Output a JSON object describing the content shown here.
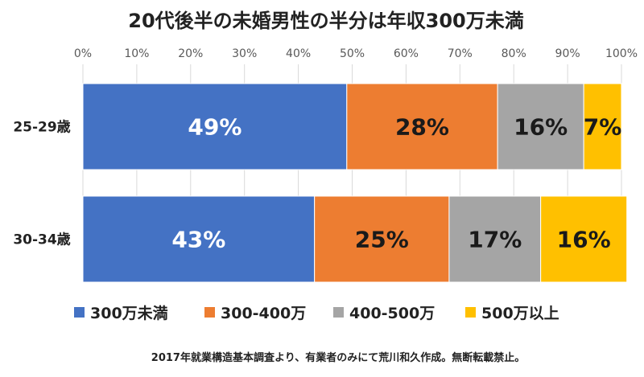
{
  "chart_data": {
    "type": "bar",
    "orientation": "horizontal",
    "stacked": true,
    "title": "20代後半の未婚男性の半分は年収300万未満",
    "categories": [
      "25-29歳",
      "30-34歳"
    ],
    "series": [
      {
        "name": "300万未満",
        "values": [
          49,
          43
        ],
        "labels": [
          "49%",
          "43%"
        ],
        "color": "#4472C4"
      },
      {
        "name": "300-400万",
        "values": [
          28,
          25
        ],
        "labels": [
          "28%",
          "25%"
        ],
        "color": "#ED7D31"
      },
      {
        "name": "400-500万",
        "values": [
          16,
          17
        ],
        "labels": [
          "16%",
          "17%"
        ],
        "color": "#A5A5A5"
      },
      {
        "name": "500万以上",
        "values": [
          7,
          16
        ],
        "labels": [
          "7%",
          "16%"
        ],
        "color": "#FFC000"
      }
    ],
    "xlim": [
      0,
      100
    ],
    "x_ticks": [
      "0%",
      "10%",
      "20%",
      "30%",
      "40%",
      "50%",
      "60%",
      "70%",
      "80%",
      "90%",
      "100%"
    ],
    "x_axis_position": "top",
    "grid": true,
    "legend_position": "bottom",
    "source_note": "2017年就業構造基本調査より、有業者のみにて荒川和久作成。無断転載禁止。"
  }
}
